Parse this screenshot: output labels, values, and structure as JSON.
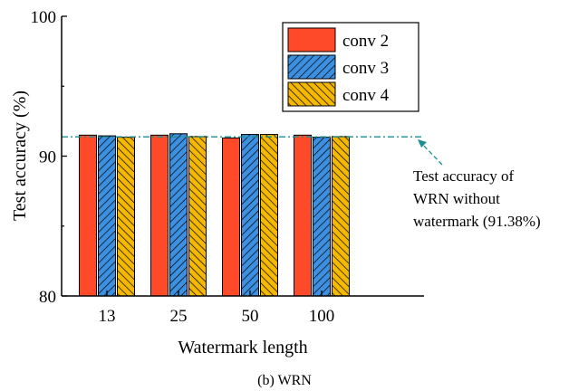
{
  "chart_data": {
    "type": "bar",
    "categories": [
      "13",
      "25",
      "50",
      "100"
    ],
    "series": [
      {
        "name": "conv 2",
        "values": [
          91.5,
          91.5,
          91.3,
          91.5
        ],
        "color": "#ff4a2a",
        "pattern": "solid"
      },
      {
        "name": "conv 3",
        "values": [
          91.45,
          91.6,
          91.55,
          91.35
        ],
        "color": "#3d8fe0",
        "pattern": "hatch-forward"
      },
      {
        "name": "conv 4",
        "values": [
          91.35,
          91.4,
          91.55,
          91.4
        ],
        "color": "#f5b800",
        "pattern": "hatch-back"
      }
    ],
    "xlabel": "Watermark length",
    "ylabel": "Test accuracy (%)",
    "ylim": [
      80,
      100
    ],
    "yticks": [
      "80",
      "90",
      "100"
    ],
    "reference_line": {
      "value": 91.38,
      "color": "#1a8f8f",
      "style": "dash-dot"
    },
    "annotation": [
      "Test accuracy of",
      "WRN without",
      "watermark (91.38%)"
    ],
    "legend_position": "top-right",
    "grid": false
  },
  "caption": "(b) WRN"
}
